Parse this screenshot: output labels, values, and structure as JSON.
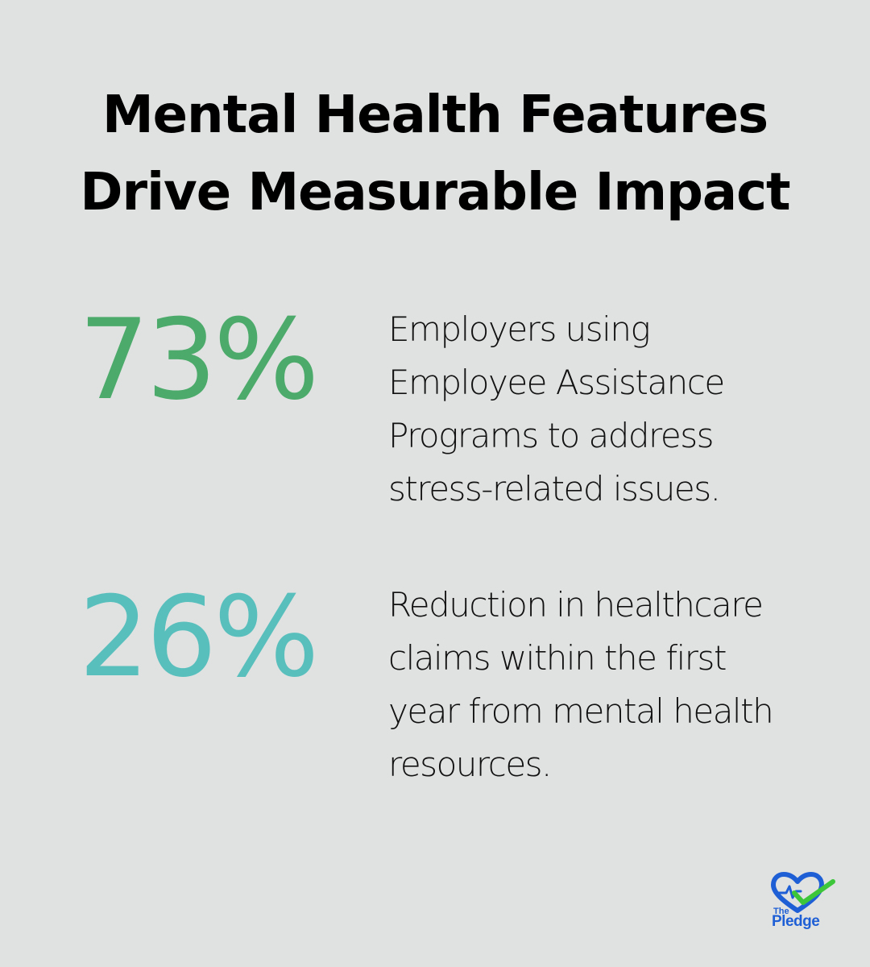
{
  "title": {
    "line1": "Mental Health Features",
    "line2": "Drive Measurable Impact"
  },
  "stats": [
    {
      "value": "73%",
      "color": "#4cab6b",
      "description_lines": [
        "Employers using",
        "Employee Assistance",
        "Programs to address",
        "stress-related issues."
      ]
    },
    {
      "value": "26%",
      "color": "#58bfbd",
      "description_lines": [
        "Reduction in healthcare",
        "claims within the first",
        "year from mental health",
        "resources."
      ]
    }
  ],
  "logo": {
    "icon": "heart-check-icon",
    "small_text": "The",
    "big_text": "Pledge",
    "colors": {
      "heart": "#1f5fd6",
      "check": "#3ec63b"
    }
  },
  "background": "#e0e2e1"
}
